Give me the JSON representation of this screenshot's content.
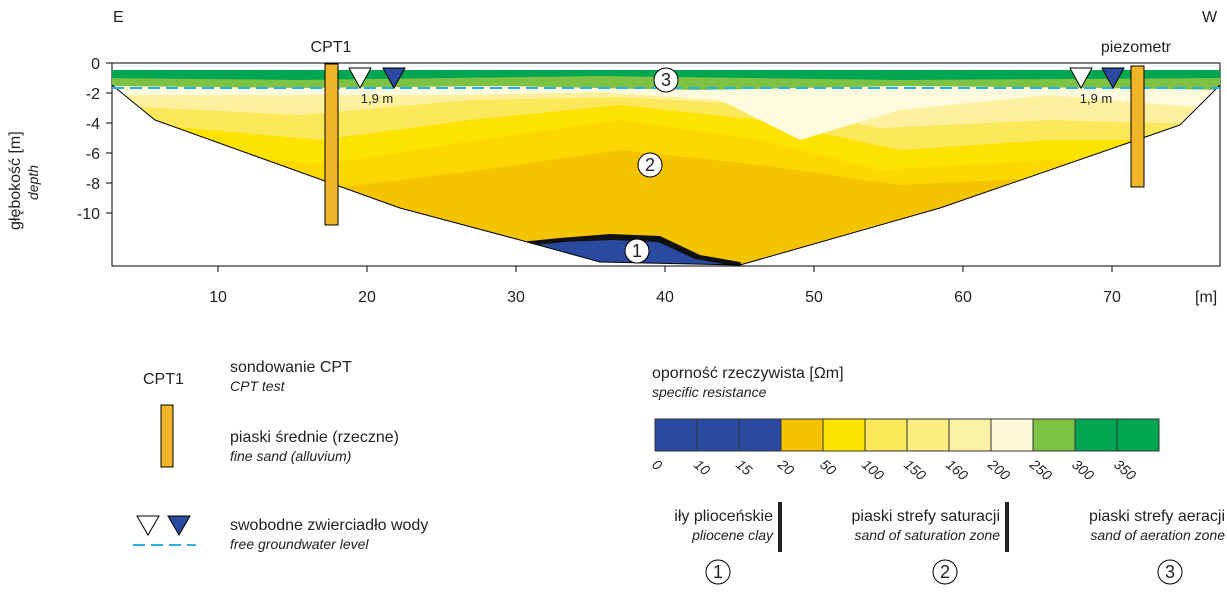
{
  "section": {
    "direction_left": "E",
    "direction_right": "W",
    "cpt_label": "CPT1",
    "piezometer_label": "piezometr",
    "water_level_left": "1,9 m",
    "water_level_right": "1,9 m",
    "zone_3": "3",
    "zone_2": "2",
    "zone_1": "1",
    "y_axis": {
      "title": "głębokość  [m]",
      "subtitle": "depth",
      "ticks": [
        0,
        -2,
        -4,
        -6,
        -8,
        -10
      ]
    },
    "x_axis": {
      "unit": "[m]",
      "ticks": [
        10,
        20,
        30,
        40,
        50,
        60,
        70
      ]
    }
  },
  "legend": {
    "cpt_symbol": "CPT1",
    "cpt_title": "sondowanie CPT",
    "cpt_subtitle": "CPT test",
    "sand_title": "piaski średnie (rzeczne)",
    "sand_subtitle": "fine sand (alluvium)",
    "water_title": "swobodne zwierciadło wody",
    "water_subtitle": "free groundwater level",
    "scale_title": "oporność rzeczywista [Ωm]",
    "scale_subtitle": "specific resistance",
    "scale_values": [
      "0",
      "10",
      "15",
      "20",
      "50",
      "100",
      "150",
      "160",
      "200",
      "250",
      "300",
      "350"
    ],
    "scale_colors": [
      "#2a4aa0",
      "#2a4aa0",
      "#2a4aa0",
      "#f5c400",
      "#fde400",
      "#fbe85a",
      "#fcee80",
      "#fdf3a6",
      "#fef9d6",
      "#7dc242",
      "#00a651",
      "#00a651"
    ],
    "zones": [
      {
        "title": "iły plioceńskie",
        "subtitle": "pliocene clay",
        "number": "1"
      },
      {
        "title": "piaski strefy saturacji",
        "subtitle": "sand of saturation zone",
        "number": "2"
      },
      {
        "title": "piaski strefy aeracji",
        "subtitle": "sand of aeration zone",
        "number": "3"
      }
    ]
  }
}
